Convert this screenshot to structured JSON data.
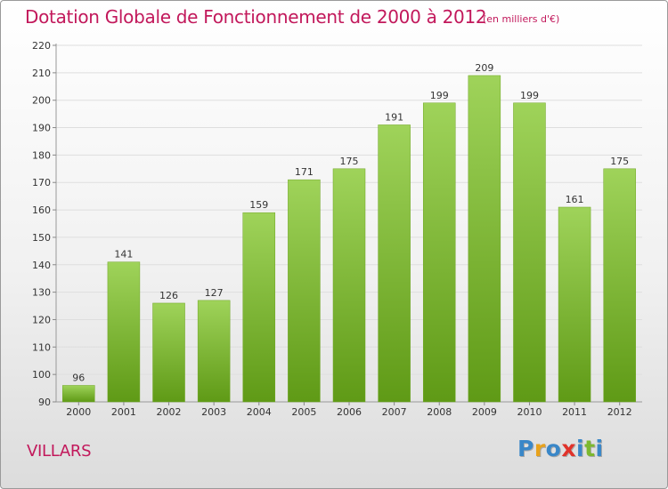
{
  "title": "Dotation Globale de Fonctionnement de 2000 à 2012",
  "subtitle": "(en milliers d'€)",
  "location": "VILLARS",
  "logo": {
    "text": "Proxiti",
    "letter_colors": [
      "#3a87c8",
      "#e8a21c",
      "#3a87c8",
      "#e0332b",
      "#3a87c8",
      "#7cb82f",
      "#3a87c8"
    ]
  },
  "colors": {
    "accent": "#c2185b",
    "bar_top": "#9fd35a",
    "bar_bottom": "#5f9a16"
  },
  "chart_data": {
    "type": "bar",
    "categories": [
      "2000",
      "2001",
      "2002",
      "2003",
      "2004",
      "2005",
      "2006",
      "2007",
      "2008",
      "2009",
      "2010",
      "2011",
      "2012"
    ],
    "values": [
      96,
      141,
      126,
      127,
      159,
      171,
      175,
      191,
      199,
      209,
      199,
      161,
      175
    ],
    "title": "Dotation Globale de Fonctionnement de 2000 à 2012",
    "subtitle": "(en milliers d'€)",
    "xlabel": "",
    "ylabel": "",
    "ylim": [
      90,
      220
    ],
    "yticks": [
      90,
      100,
      110,
      120,
      130,
      140,
      150,
      160,
      170,
      180,
      190,
      200,
      210,
      220
    ],
    "grid": true,
    "legend": "none"
  }
}
